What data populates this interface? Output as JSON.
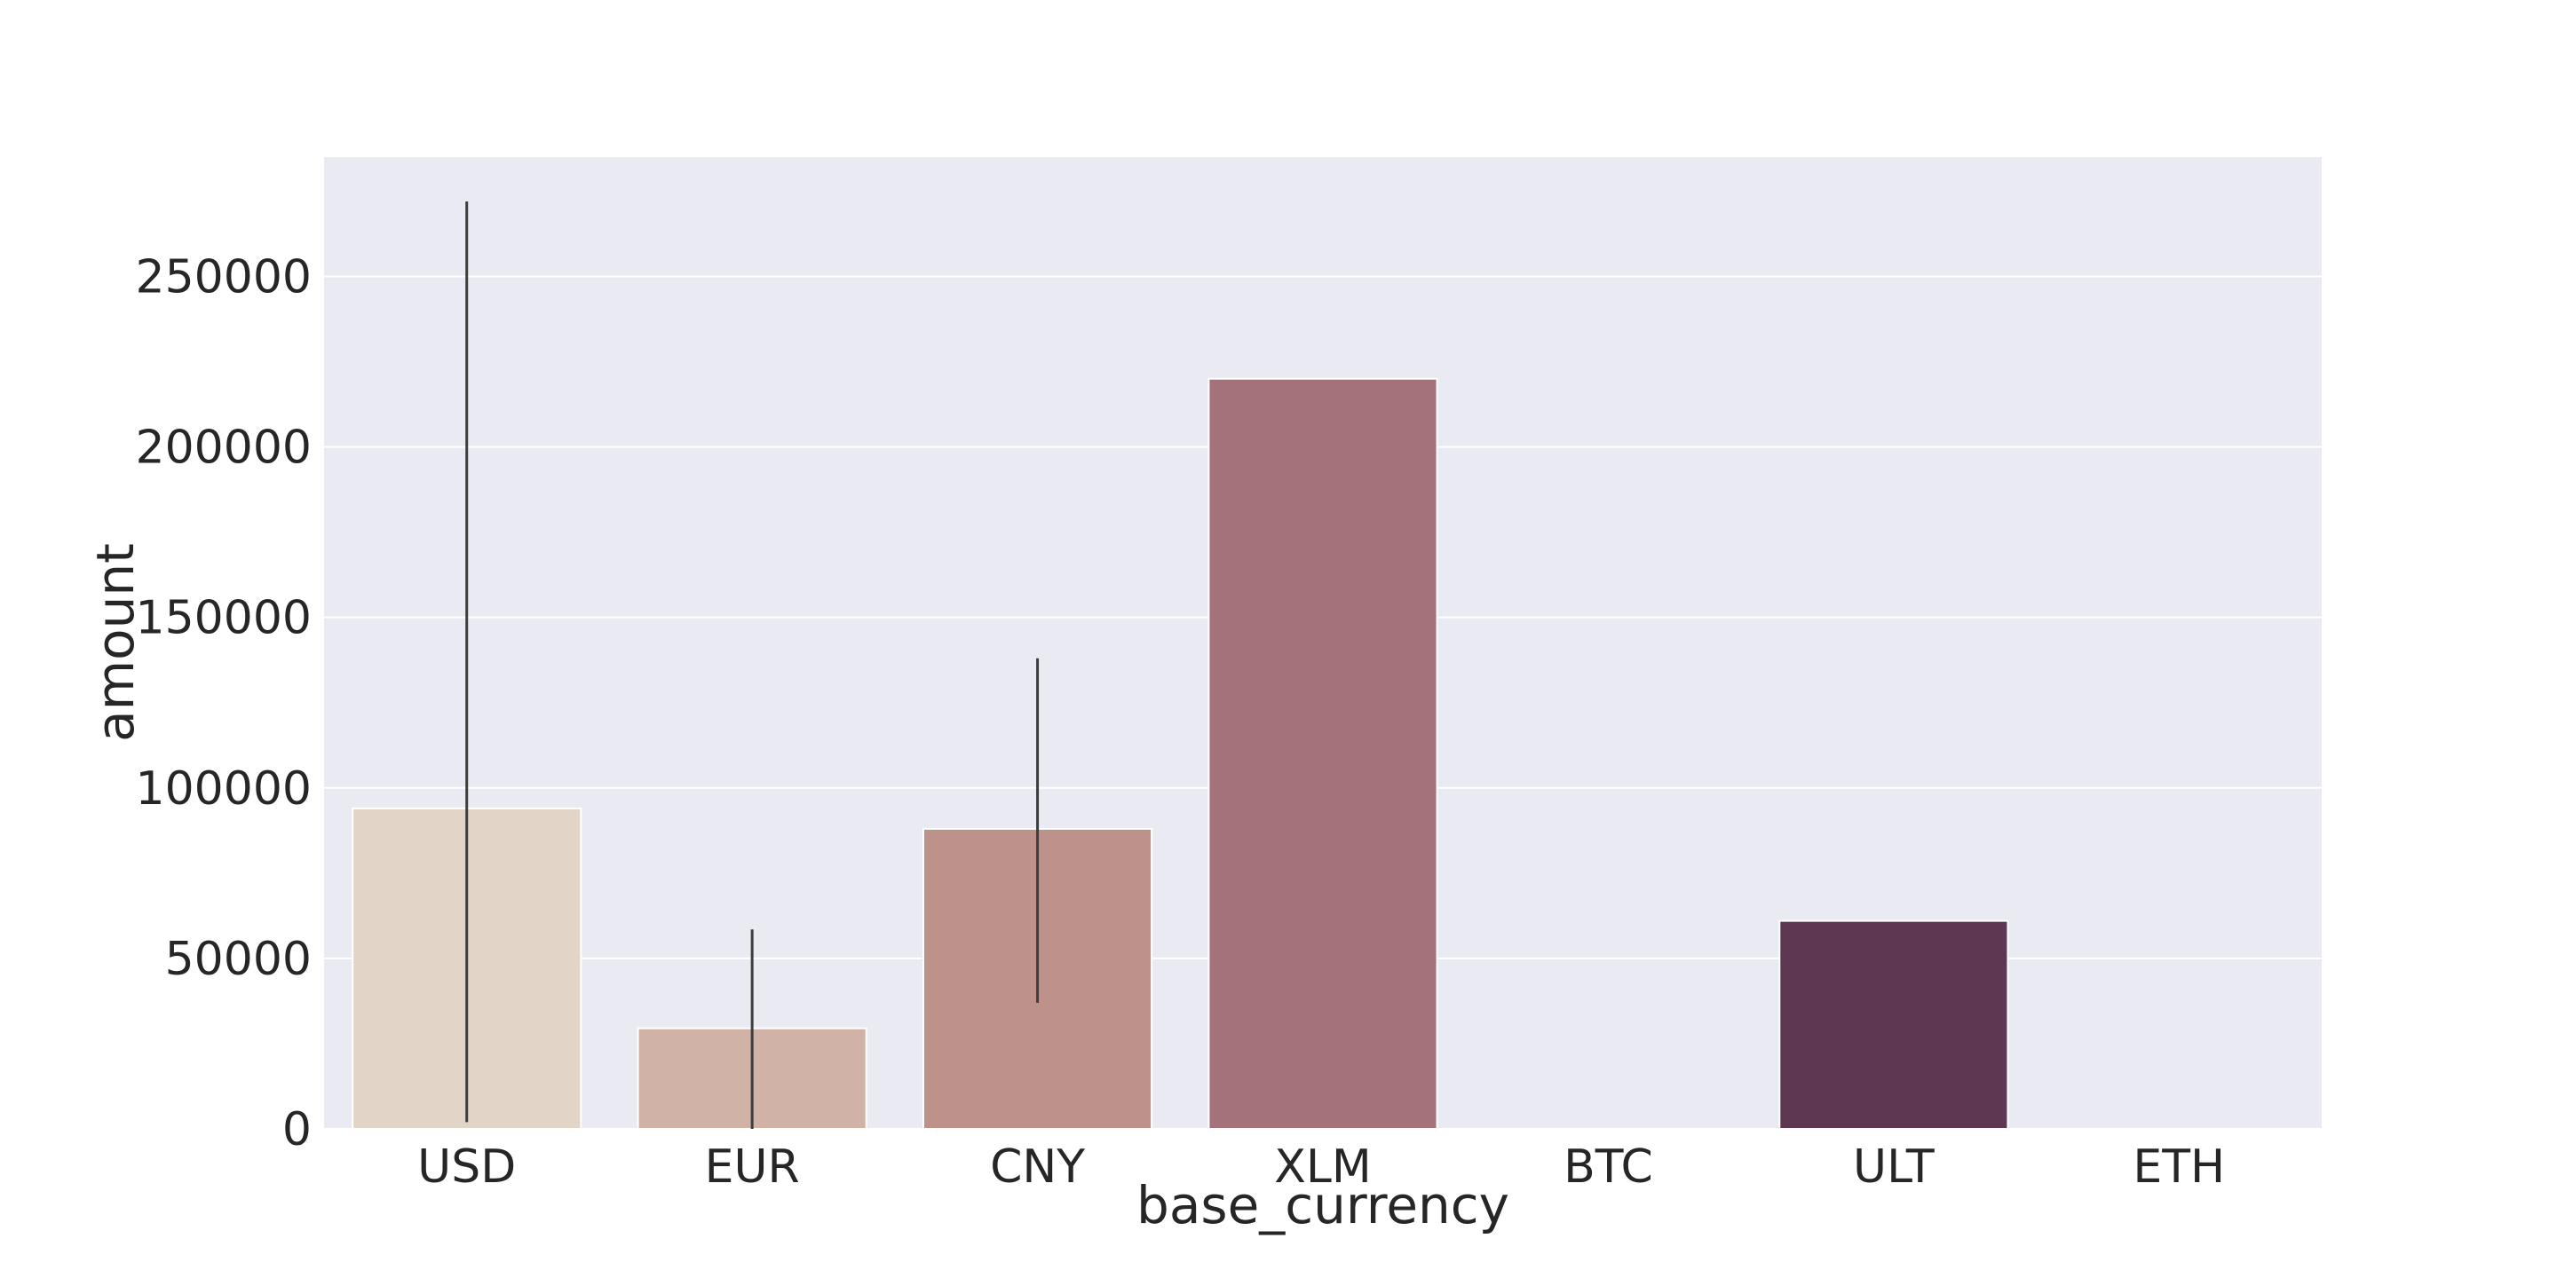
{
  "chart_data": {
    "type": "bar",
    "xlabel": "base_currency",
    "ylabel": "amount",
    "ylim": [
      0,
      285000
    ],
    "yticks": [
      0,
      50000,
      100000,
      150000,
      200000,
      250000
    ],
    "grid": true,
    "categories": [
      "USD",
      "EUR",
      "CNY",
      "XLM",
      "BTC",
      "ULT",
      "ETH"
    ],
    "values": [
      94000,
      29500,
      88000,
      220000,
      0,
      61000,
      0
    ],
    "error_bars": [
      {
        "low": 2000,
        "high": 272000
      },
      {
        "low": 0,
        "high": 58500
      },
      {
        "low": 37000,
        "high": 138000
      },
      null,
      null,
      null,
      null
    ],
    "colors": [
      "#e2d5c8",
      "#d0b3a6",
      "#bc928b",
      "#a3727a",
      "#86546a",
      "#5e3752",
      "#3b1f3c"
    ],
    "plot_background": "#eaeaf2",
    "gridline_color": "#ffffff",
    "errorbar_color": "#3d3d3d"
  }
}
